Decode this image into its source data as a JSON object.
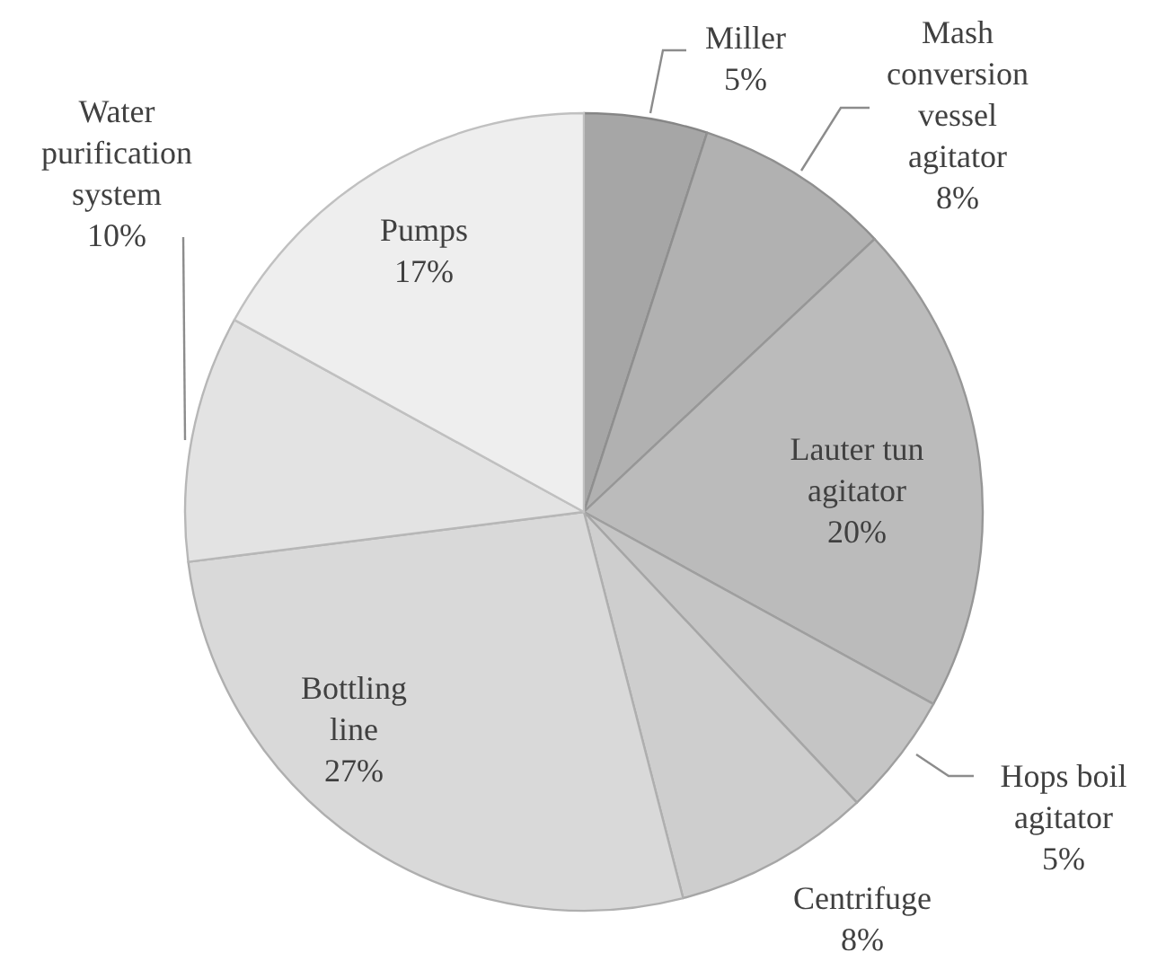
{
  "chart_data": {
    "type": "pie",
    "categories": [
      "Miller",
      "Mash conversion vessel agitator",
      "Lauter tun agitator",
      "Hops boil agitator",
      "Centrifuge",
      "Bottling line",
      "Water purification system",
      "Pumps"
    ],
    "values": [
      5,
      8,
      20,
      5,
      8,
      27,
      10,
      17
    ],
    "colors": [
      "#a6a6a6",
      "#b1b1b1",
      "#bbbbbb",
      "#c5c5c5",
      "#cecece",
      "#d9d9d9",
      "#e3e3e3",
      "#eeeeee"
    ],
    "value_labels": [
      "5%",
      "8%",
      "20%",
      "5%",
      "8%",
      "27%",
      "10%",
      "17%"
    ]
  }
}
